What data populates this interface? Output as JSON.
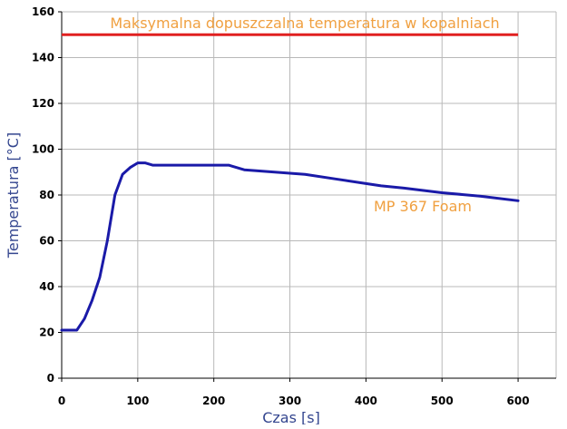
{
  "chart_data": {
    "type": "line",
    "xlabel": "Czas [s]",
    "ylabel": "Temperatura [°C]",
    "xlim": [
      0,
      650
    ],
    "ylim": [
      0,
      160
    ],
    "xticks": [
      0,
      100,
      200,
      300,
      400,
      500,
      600
    ],
    "yticks": [
      0,
      20,
      40,
      60,
      80,
      100,
      120,
      140,
      160
    ],
    "grid": true,
    "series": [
      {
        "name": "MP 367 Foam",
        "color": "#1a1aa8",
        "x": [
          0,
          10,
          20,
          30,
          40,
          50,
          60,
          70,
          80,
          90,
          100,
          110,
          120,
          150,
          200,
          220,
          240,
          280,
          320,
          360,
          400,
          420,
          450,
          500,
          550,
          600
        ],
        "y": [
          21,
          21,
          21,
          26,
          34,
          44,
          60,
          80,
          89,
          92,
          94,
          94,
          93,
          93,
          93,
          93,
          91,
          90,
          89,
          87,
          85,
          84,
          83,
          81,
          79.5,
          77.5
        ]
      }
    ],
    "reference_line": {
      "label": "Maksymalna dopuszczalna temperatura w kopalniach",
      "y": 150,
      "x": [
        0,
        600
      ],
      "color": "#e02020"
    },
    "colors": {
      "grid": "#b8b8b8",
      "axis_title": "#34468f",
      "annotation": "#f0a040"
    }
  }
}
